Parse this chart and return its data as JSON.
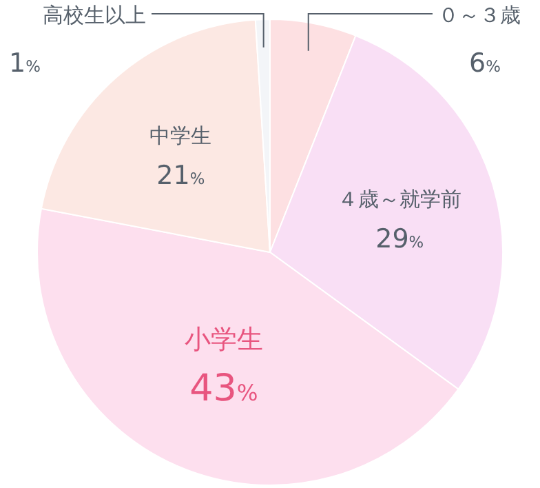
{
  "chart_data": {
    "type": "pie",
    "categories": [
      "０～３歳",
      "４歳～就学前",
      "小学生",
      "中学生",
      "高校生以上"
    ],
    "values": [
      6,
      29,
      43,
      21,
      1
    ],
    "value_labels": [
      "6%",
      "29%",
      "43%",
      "21%",
      "1%"
    ],
    "colors": [
      "#fde0e2",
      "#f9dff5",
      "#fddfee",
      "#fce8e3",
      "#f3f5f8"
    ]
  }
}
